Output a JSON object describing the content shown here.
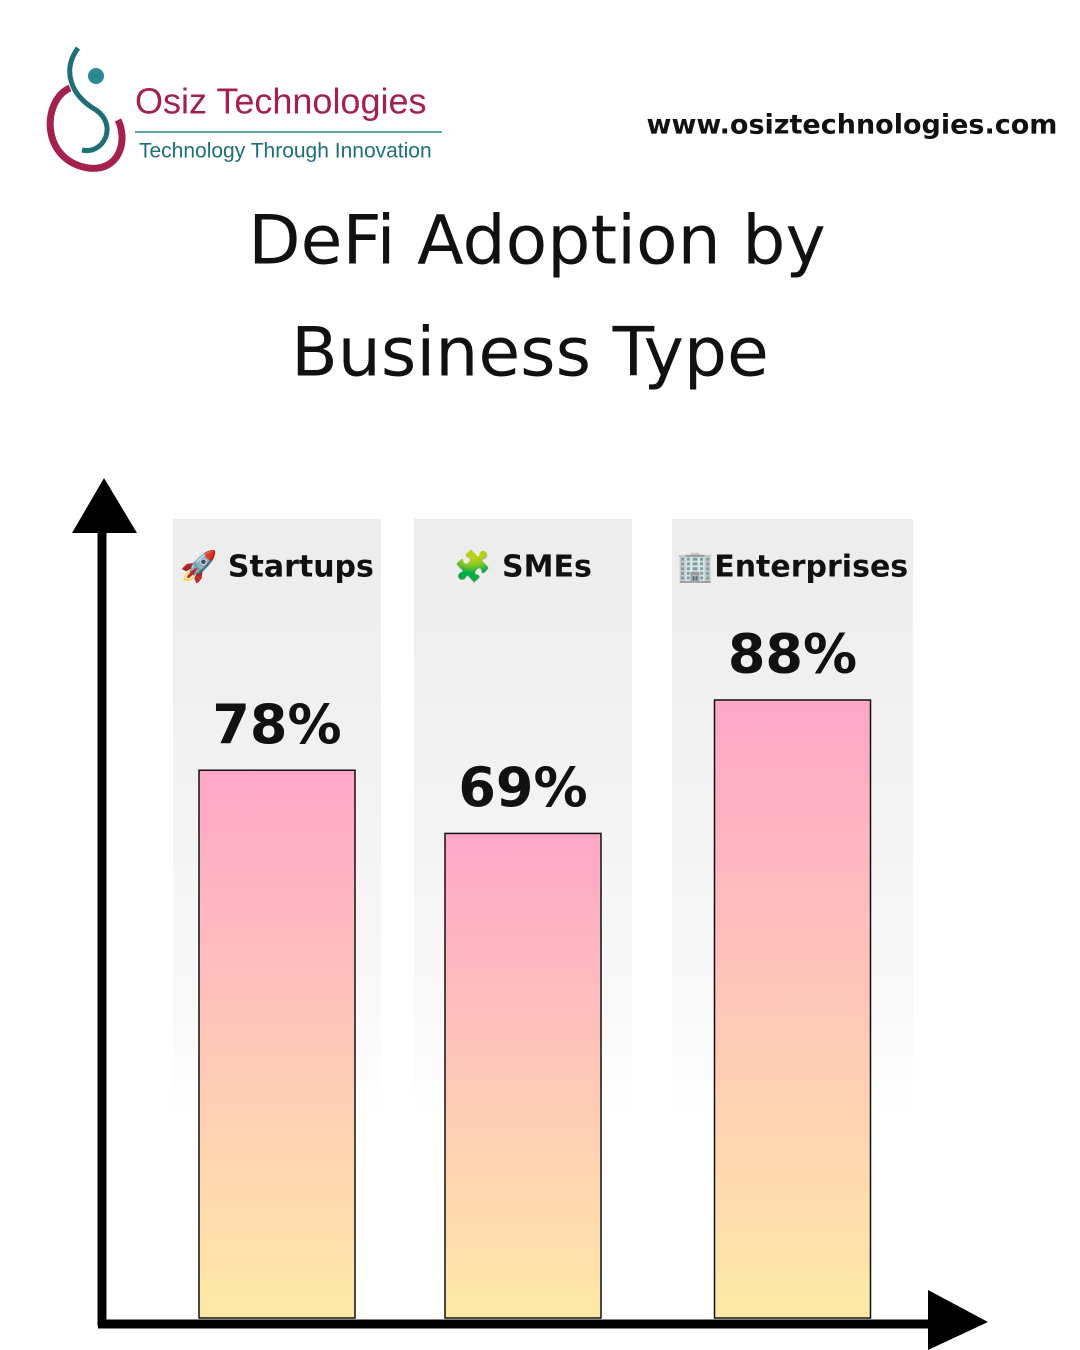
{
  "header": {
    "company": "Osiz Technologies",
    "tagline": "Technology Through Innovation",
    "website": "www.osiztechnologies.com"
  },
  "chart_data": {
    "type": "bar",
    "title_lines": [
      "DeFi Adoption by",
      "Business Type"
    ],
    "categories": [
      "🚀 Startups",
      "🧩 SMEs",
      "🏢Enterprises"
    ],
    "values": [
      78,
      69,
      88
    ],
    "value_labels": [
      "78%",
      "69%",
      "88%"
    ],
    "color_top": "#ffa6c9",
    "color_bottom": "#fee9a6"
  }
}
